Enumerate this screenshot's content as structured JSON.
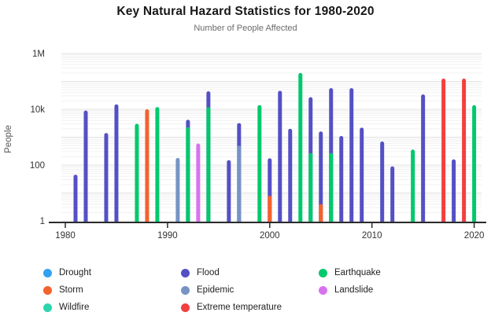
{
  "chart_data": {
    "type": "bar",
    "title": "Key Natural Hazard Statistics for 1980-2020",
    "subtitle": "Number of People Affected",
    "ylabel": "People",
    "xlabel": "",
    "y_scale": "log",
    "ylim": [
      1,
      2000000
    ],
    "xlim": [
      1979,
      2021
    ],
    "grid": "horizontal-log-minor",
    "legend_position": "bottom",
    "x_ticks": [
      1980,
      1990,
      2000,
      2010,
      2020
    ],
    "y_ticks": [
      {
        "value": 1,
        "label": "1"
      },
      {
        "value": 100,
        "label": "100"
      },
      {
        "value": 10000,
        "label": "10k"
      },
      {
        "value": 1000000,
        "label": "1M"
      }
    ],
    "series": [
      {
        "name": "Drought",
        "color": "#31A2F0",
        "points": []
      },
      {
        "name": "Wildfire",
        "color": "#2BD5AE",
        "points": []
      },
      {
        "name": "Flood",
        "color": "#5450C4",
        "points": [
          [
            1981,
            45
          ],
          [
            1982,
            9000
          ],
          [
            1984,
            1400
          ],
          [
            1985,
            15000
          ],
          [
            1992,
            4200
          ],
          [
            1994,
            44000
          ],
          [
            1996,
            150
          ],
          [
            1997,
            3200
          ],
          [
            2000,
            175
          ],
          [
            2001,
            46000
          ],
          [
            2002,
            2000
          ],
          [
            2004,
            27000
          ],
          [
            2005,
            1600
          ],
          [
            2006,
            57000
          ],
          [
            2007,
            1100
          ],
          [
            2008,
            57000
          ],
          [
            2009,
            2200
          ],
          [
            2011,
            700
          ],
          [
            2012,
            90
          ],
          [
            2015,
            34000
          ],
          [
            2018,
            160
          ]
        ]
      },
      {
        "name": "Epidemic",
        "color": "#7693C6",
        "points": [
          [
            1991,
            180
          ],
          [
            1997,
            500
          ]
        ]
      },
      {
        "name": "Extreme temperature",
        "color": "#F23F3F",
        "points": [
          [
            2017,
            125000
          ],
          [
            2019,
            125000
          ]
        ]
      },
      {
        "name": "Landslide",
        "color": "#D873F0",
        "points": [
          [
            1993,
            590
          ]
        ]
      },
      {
        "name": "Earthquake",
        "color": "#00C96C",
        "points": [
          [
            1987,
            3000
          ],
          [
            1989,
            12000
          ],
          [
            1992,
            2300
          ],
          [
            1994,
            12000
          ],
          [
            1999,
            14000
          ],
          [
            2003,
            200000
          ],
          [
            2004,
            270
          ],
          [
            2006,
            270
          ],
          [
            2014,
            360
          ],
          [
            2020,
            14000
          ]
        ]
      },
      {
        "name": "Storm",
        "color": "#F4622D",
        "points": [
          [
            1988,
            10000
          ],
          [
            2000,
            8
          ],
          [
            2005,
            4
          ]
        ]
      }
    ],
    "legend_columns": [
      [
        "Drought",
        "Storm",
        "Wildfire"
      ],
      [
        "Flood",
        "Epidemic",
        "Extreme temperature"
      ],
      [
        "Earthquake",
        "Landslide"
      ]
    ]
  }
}
